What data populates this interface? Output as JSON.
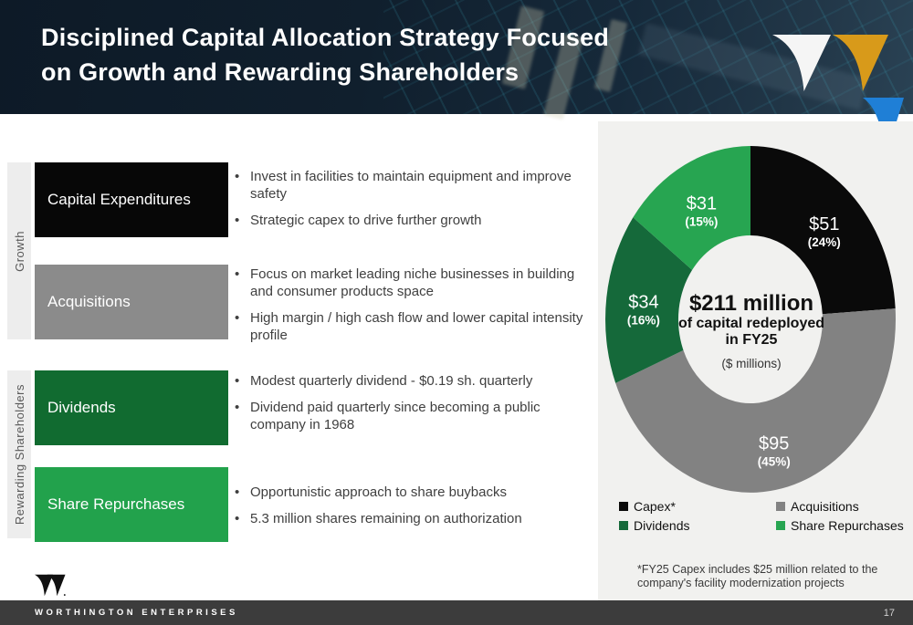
{
  "header": {
    "title_line1": "Disciplined Capital Allocation Strategy Focused",
    "title_line2": "on Growth and Rewarding Shareholders"
  },
  "logo": {
    "mark_colors": {
      "white": "#f5f5f5",
      "gold": "#d89a1a",
      "blue": "#1f7fd6"
    }
  },
  "side_labels": {
    "growth": "Growth",
    "rewarding": "Rewarding Shareholders"
  },
  "groups": [
    {
      "label": "Capital Expenditures",
      "color": "#070707",
      "bullets": [
        "Invest in facilities to maintain equipment and improve safety",
        "Strategic capex to drive further growth"
      ]
    },
    {
      "label": "Acquisitions",
      "color": "#8b8b8b",
      "bullets": [
        "Focus on market leading niche businesses in building and consumer products space",
        "High margin / high cash flow and lower capital intensity profile"
      ]
    },
    {
      "label": "Dividends",
      "color": "#116b30",
      "bullets": [
        "Modest quarterly dividend - $0.19 sh. quarterly",
        "Dividend paid quarterly since becoming a public company in 1968"
      ]
    },
    {
      "label": "Share Repurchases",
      "color": "#22a24c",
      "bullets": [
        "Opportunistic approach to share buybacks",
        "5.3 million shares remaining on authorization"
      ]
    }
  ],
  "chart_data": {
    "type": "pie",
    "subtype": "donut",
    "title": "$211 million",
    "subtitle": "of capital redeployed",
    "subtitle2": "in FY25",
    "units_note": "($ millions)",
    "total_value": 211,
    "legend_position": "bottom",
    "segments": [
      {
        "label": "Capex*",
        "value": 51,
        "pct": 24,
        "value_label": "$51",
        "pct_label": "(24%)",
        "color": "#0a0a0a"
      },
      {
        "label": "Acquisitions",
        "value": 95,
        "pct": 45,
        "value_label": "$95",
        "pct_label": "(45%)",
        "color": "#828282"
      },
      {
        "label": "Dividends",
        "value": 34,
        "pct": 16,
        "value_label": "$34",
        "pct_label": "(16%)",
        "color": "#15693a"
      },
      {
        "label": "Share Repurchases",
        "value": 31,
        "pct": 15,
        "value_label": "$31",
        "pct_label": "(15%)",
        "color": "#27a551"
      }
    ],
    "footnote": [
      "*FY25 Capex includes $25 million related to the",
      "company's facility modernization projects"
    ]
  },
  "footer": {
    "brand": "WORTHINGTON ENTERPRISES",
    "page_number": "17"
  }
}
